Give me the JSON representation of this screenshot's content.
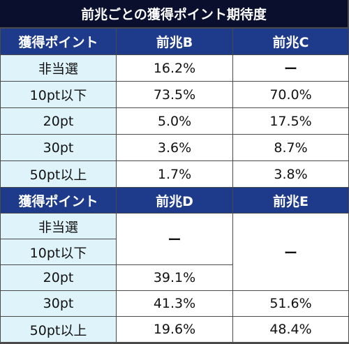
{
  "title": "前兆ごとの獲得ポイント期待度",
  "table1": {
    "headers": [
      "獲得ポイント",
      "前兆B",
      "前兆C"
    ],
    "rows": [
      {
        "label": "非当選",
        "b": "16.2%",
        "c": "ー"
      },
      {
        "label": "10pt以下",
        "b": "73.5%",
        "c": "70.0%"
      },
      {
        "label": "20pt",
        "b": "5.0%",
        "c": "17.5%"
      },
      {
        "label": "30pt",
        "b": "3.6%",
        "c": "8.7%"
      },
      {
        "label": "50pt以上",
        "b": "1.7%",
        "c": "3.8%"
      }
    ]
  },
  "table2": {
    "headers": [
      "獲得ポイント",
      "前兆D",
      "前兆E"
    ],
    "labels": [
      "非当選",
      "10pt以下",
      "20pt",
      "30pt",
      "50pt以上"
    ],
    "d_merged": "ー",
    "d_20pt": "39.1%",
    "d_30pt": "41.3%",
    "d_50pt": "19.6%",
    "e_merged": "ー",
    "e_30pt": "51.6%",
    "e_50pt": "48.4%"
  }
}
